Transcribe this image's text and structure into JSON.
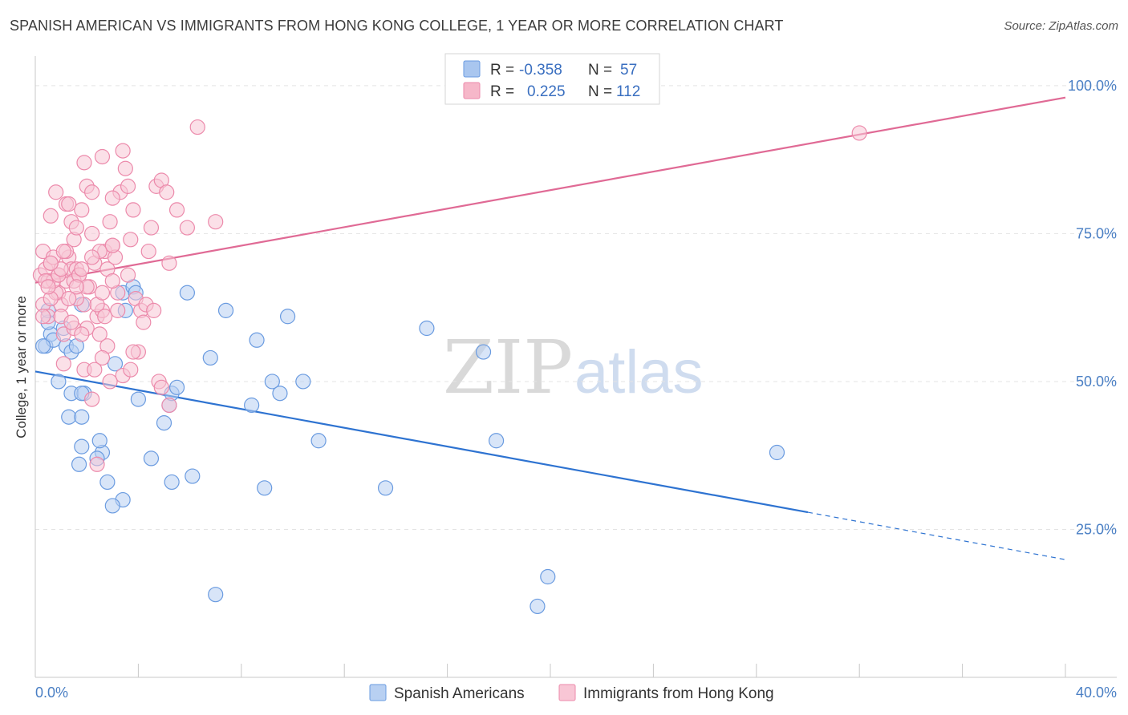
{
  "title": "SPANISH AMERICAN VS IMMIGRANTS FROM HONG KONG COLLEGE, 1 YEAR OR MORE CORRELATION CHART",
  "source": "Source: ZipAtlas.com",
  "watermark": {
    "zip": "ZIP",
    "atlas": "atlas"
  },
  "legend_box": {
    "rows": [
      {
        "r_label": "R =",
        "r_value": "-0.358",
        "n_label": "N =",
        "n_value": "57",
        "color": "#a9c6ef"
      },
      {
        "r_label": "R =",
        "r_value": "0.225",
        "n_label": "N =",
        "n_value": "112",
        "color": "#f6b7c9"
      }
    ]
  },
  "chart_data": {
    "type": "scatter",
    "title": "SPANISH AMERICAN VS IMMIGRANTS FROM HONG KONG COLLEGE, 1 YEAR OR MORE CORRELATION CHART",
    "xlabel": "",
    "ylabel": "College, 1 year or more",
    "xlim": [
      0,
      40
    ],
    "ylim": [
      0,
      105
    ],
    "x_tick_labels": [
      "0.0%",
      "40.0%"
    ],
    "y_tick_values": [
      25,
      50,
      75,
      100
    ],
    "y_tick_labels": [
      "25.0%",
      "50.0%",
      "75.0%",
      "100.0%"
    ],
    "grid": true,
    "legend_position": "top-center",
    "series": [
      {
        "name": "Spanish Americans",
        "color": "#6a9be0",
        "fill": "#b8d0f2",
        "trend": {
          "x0": 0,
          "y0": 51.7,
          "x1": 30,
          "y1": 27.9,
          "dash_to_x": 40,
          "dash_to_y": 19.9,
          "color": "#2e73d1"
        },
        "points": [
          [
            0.4,
            56
          ],
          [
            0.6,
            58
          ],
          [
            0.5,
            60
          ],
          [
            0.7,
            57
          ],
          [
            0.9,
            50
          ],
          [
            1.1,
            59
          ],
          [
            1.2,
            56
          ],
          [
            1.4,
            55
          ],
          [
            1.6,
            56
          ],
          [
            1.3,
            44
          ],
          [
            1.4,
            48
          ],
          [
            1.8,
            44
          ],
          [
            1.8,
            63
          ],
          [
            1.9,
            48
          ],
          [
            1.8,
            48
          ],
          [
            1.8,
            39
          ],
          [
            1.7,
            36
          ],
          [
            2.6,
            38
          ],
          [
            2.5,
            40
          ],
          [
            2.8,
            33
          ],
          [
            3.1,
            53
          ],
          [
            3.4,
            65
          ],
          [
            3.5,
            62
          ],
          [
            3.8,
            66
          ],
          [
            3.9,
            65
          ],
          [
            4.0,
            47
          ],
          [
            4.5,
            37
          ],
          [
            5.0,
            43
          ],
          [
            5.2,
            46
          ],
          [
            5.3,
            48
          ],
          [
            5.5,
            49
          ],
          [
            5.3,
            33
          ],
          [
            5.9,
            65
          ],
          [
            6.1,
            34
          ],
          [
            6.8,
            54
          ],
          [
            7.4,
            62
          ],
          [
            8.4,
            46
          ],
          [
            8.6,
            57
          ],
          [
            8.9,
            32
          ],
          [
            9.2,
            50
          ],
          [
            9.5,
            48
          ],
          [
            9.8,
            61
          ],
          [
            10.4,
            50
          ],
          [
            11.0,
            40
          ],
          [
            13.6,
            32
          ],
          [
            15.2,
            59
          ],
          [
            17.4,
            55
          ],
          [
            17.9,
            40
          ],
          [
            19.9,
            17
          ],
          [
            19.5,
            12
          ],
          [
            7.0,
            14
          ],
          [
            28.8,
            38
          ],
          [
            2.4,
            37
          ],
          [
            3.4,
            30
          ],
          [
            3.0,
            29
          ],
          [
            0.5,
            62
          ],
          [
            0.3,
            56
          ]
        ]
      },
      {
        "name": "Immigrants from Hong Kong",
        "color": "#ec8aab",
        "fill": "#f8c6d5",
        "trend": {
          "x0": 0,
          "y0": 66.7,
          "x1": 40,
          "y1": 98.0,
          "color": "#e06a95"
        },
        "points": [
          [
            0.2,
            68
          ],
          [
            0.3,
            72
          ],
          [
            0.4,
            69
          ],
          [
            0.5,
            67
          ],
          [
            0.6,
            70
          ],
          [
            0.3,
            63
          ],
          [
            0.5,
            61
          ],
          [
            0.6,
            78
          ],
          [
            0.7,
            71
          ],
          [
            0.8,
            82
          ],
          [
            0.9,
            65
          ],
          [
            1.0,
            63
          ],
          [
            1.1,
            58
          ],
          [
            0.9,
            68
          ],
          [
            1.2,
            67
          ],
          [
            1.3,
            71
          ],
          [
            1.2,
            80
          ],
          [
            1.4,
            77
          ],
          [
            1.5,
            74
          ],
          [
            1.4,
            69
          ],
          [
            1.6,
            69
          ],
          [
            1.7,
            68
          ],
          [
            1.8,
            79
          ],
          [
            1.9,
            87
          ],
          [
            2.0,
            83
          ],
          [
            2.1,
            66
          ],
          [
            2.2,
            82
          ],
          [
            2.2,
            75
          ],
          [
            2.3,
            70
          ],
          [
            2.0,
            59
          ],
          [
            1.9,
            63
          ],
          [
            2.4,
            61
          ],
          [
            2.6,
            62
          ],
          [
            2.7,
            72
          ],
          [
            2.8,
            69
          ],
          [
            2.9,
            77
          ],
          [
            3.0,
            73
          ],
          [
            3.1,
            71
          ],
          [
            3.2,
            65
          ],
          [
            3.3,
            82
          ],
          [
            3.4,
            89
          ],
          [
            3.5,
            86
          ],
          [
            3.6,
            83
          ],
          [
            3.7,
            74
          ],
          [
            3.8,
            79
          ],
          [
            3.9,
            64
          ],
          [
            4.0,
            55
          ],
          [
            4.1,
            62
          ],
          [
            4.2,
            60
          ],
          [
            4.4,
            72
          ],
          [
            4.5,
            76
          ],
          [
            4.7,
            83
          ],
          [
            4.9,
            84
          ],
          [
            5.1,
            82
          ],
          [
            5.2,
            70
          ],
          [
            5.5,
            79
          ],
          [
            5.9,
            76
          ],
          [
            6.3,
            93
          ],
          [
            7.0,
            77
          ],
          [
            3.0,
            81
          ],
          [
            2.6,
            88
          ],
          [
            1.6,
            76
          ],
          [
            1.3,
            80
          ],
          [
            0.8,
            65
          ],
          [
            1.0,
            61
          ],
          [
            1.6,
            64
          ],
          [
            2.5,
            58
          ],
          [
            2.8,
            56
          ],
          [
            3.0,
            67
          ],
          [
            3.6,
            68
          ],
          [
            4.8,
            50
          ],
          [
            5.2,
            46
          ],
          [
            4.9,
            49
          ],
          [
            3.4,
            51
          ],
          [
            2.6,
            54
          ],
          [
            2.2,
            47
          ],
          [
            1.9,
            52
          ],
          [
            1.5,
            59
          ],
          [
            1.1,
            53
          ],
          [
            2.4,
            36
          ],
          [
            0.7,
            67
          ],
          [
            0.4,
            67
          ],
          [
            0.6,
            64
          ],
          [
            0.9,
            68
          ],
          [
            1.2,
            72
          ],
          [
            1.5,
            67
          ],
          [
            1.7,
            68
          ],
          [
            2.0,
            66
          ],
          [
            2.4,
            63
          ],
          [
            2.7,
            61
          ],
          [
            3.2,
            62
          ],
          [
            3.8,
            55
          ],
          [
            3.0,
            73
          ],
          [
            2.5,
            72
          ],
          [
            2.2,
            71
          ],
          [
            1.8,
            69
          ],
          [
            1.6,
            66
          ],
          [
            1.3,
            64
          ],
          [
            1.0,
            69
          ],
          [
            0.6,
            70
          ],
          [
            0.3,
            61
          ],
          [
            0.5,
            66
          ],
          [
            1.4,
            60
          ],
          [
            2.9,
            50
          ],
          [
            4.3,
            63
          ],
          [
            4.6,
            62
          ],
          [
            1.8,
            58
          ],
          [
            2.3,
            52
          ],
          [
            3.7,
            52
          ],
          [
            32.0,
            92
          ],
          [
            1.1,
            72
          ],
          [
            2.6,
            65
          ]
        ]
      }
    ]
  },
  "bottom_legend": [
    "Spanish Americans",
    "Immigrants from Hong Kong"
  ]
}
